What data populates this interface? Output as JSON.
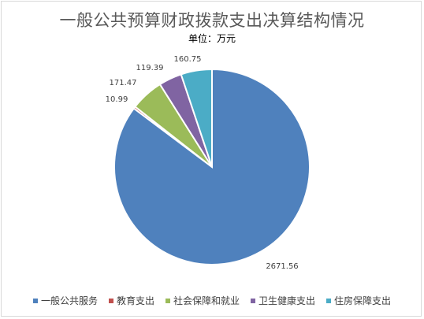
{
  "chart_data": {
    "type": "pie",
    "title": "一般公共预算财政拨款支出决算结构情况",
    "subtitle": "单位：万元",
    "categories": [
      "一般公共服务",
      "教育支出",
      "社会保障和就业",
      "卫生健康支出",
      "住房保障支出"
    ],
    "values": [
      2671.56,
      10.99,
      171.47,
      119.39,
      160.75
    ],
    "labels": [
      "2671.56",
      "10.99",
      "171.47",
      "119.39",
      "160.75"
    ],
    "colors": [
      "#4f81bd",
      "#c0504d",
      "#9bbb59",
      "#8064a2",
      "#4bacc6"
    ],
    "legend_position": "bottom",
    "start_angle_deg": 0,
    "direction": "clockwise"
  }
}
